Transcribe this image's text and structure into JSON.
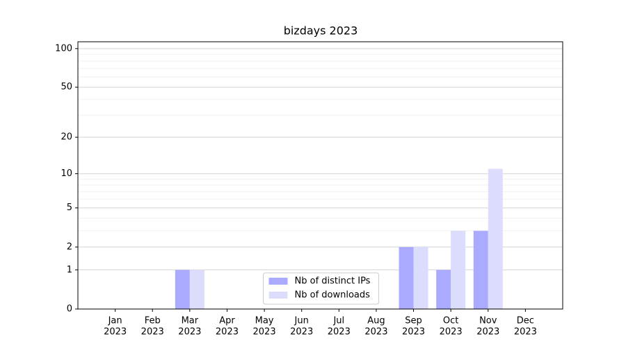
{
  "chart_data": {
    "type": "bar",
    "title": "bizdays 2023",
    "categories": [
      [
        "Jan",
        "2023"
      ],
      [
        "Feb",
        "2023"
      ],
      [
        "Mar",
        "2023"
      ],
      [
        "Apr",
        "2023"
      ],
      [
        "May",
        "2023"
      ],
      [
        "Jun",
        "2023"
      ],
      [
        "Jul",
        "2023"
      ],
      [
        "Aug",
        "2023"
      ],
      [
        "Sep",
        "2023"
      ],
      [
        "Oct",
        "2023"
      ],
      [
        "Nov",
        "2023"
      ],
      [
        "Dec",
        "2023"
      ]
    ],
    "series": [
      {
        "name": "Nb of distinct IPs",
        "color": "#aaaaff",
        "values": [
          0,
          0,
          1,
          0,
          0,
          0,
          0,
          0,
          2,
          1,
          3,
          0
        ]
      },
      {
        "name": "Nb of downloads",
        "color": "#dcdcfc",
        "values": [
          0,
          0,
          1,
          0,
          0,
          0,
          0,
          0,
          2,
          3,
          11,
          0
        ]
      }
    ],
    "yscale": "log1p",
    "ylim": [
      0,
      113
    ],
    "yticks": [
      0,
      1,
      2,
      5,
      10,
      20,
      50,
      100
    ],
    "minor_yticks": [
      3,
      4,
      6,
      7,
      8,
      9,
      30,
      40,
      60,
      70,
      80,
      90
    ],
    "grid": true,
    "legend": "lower center"
  }
}
